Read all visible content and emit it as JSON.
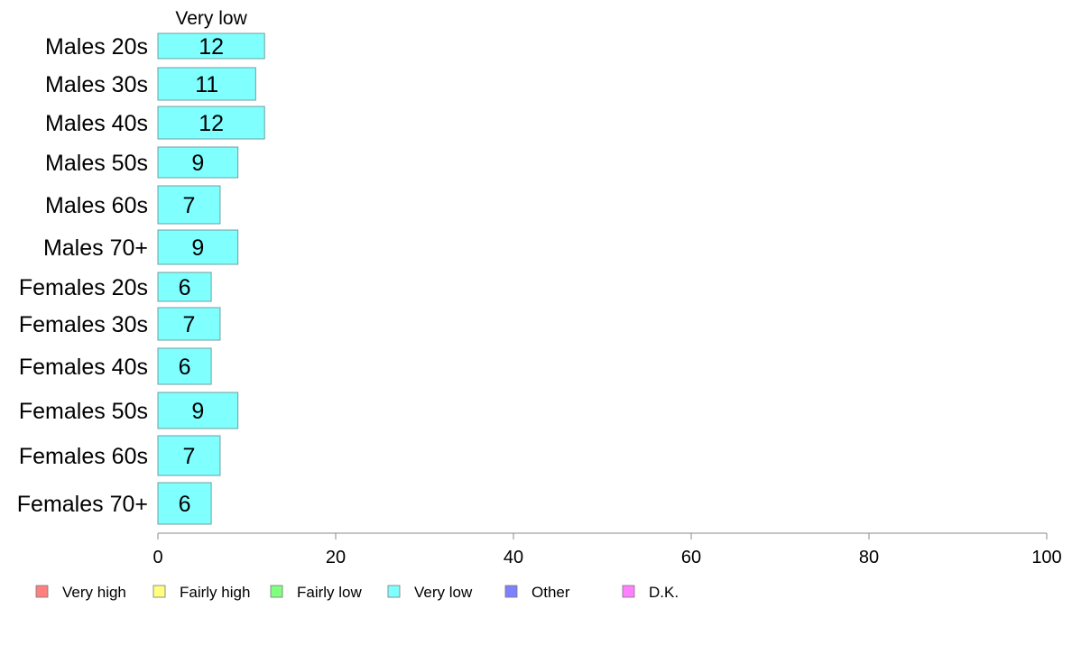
{
  "chart_data": {
    "type": "bar",
    "orientation": "horizontal",
    "title": "",
    "xlabel": "",
    "ylabel": "",
    "xlim": [
      0,
      100
    ],
    "x_ticks": [
      "0",
      "20",
      "40",
      "60",
      "80",
      "100"
    ],
    "grid": false,
    "series_header": "Very low",
    "categories": [
      "Males 20s",
      "Males 30s",
      "Males 40s",
      "Males 50s",
      "Males 60s",
      "Males 70+",
      "Females 20s",
      "Females 30s",
      "Females 40s",
      "Females 50s",
      "Females 60s",
      "Females 70+"
    ],
    "series": [
      {
        "name": "Very low",
        "color": "#80ffff",
        "values": [
          12,
          11,
          12,
          9,
          7,
          9,
          6,
          7,
          6,
          9,
          7,
          6
        ],
        "labels": [
          "12",
          "11",
          "12",
          "9",
          "7",
          "9",
          "6",
          "7",
          "6",
          "9",
          "7",
          "6"
        ]
      }
    ],
    "legend": {
      "position": "bottom",
      "items": [
        {
          "label": "Very high",
          "color": "#ff8080"
        },
        {
          "label": "Fairly high",
          "color": "#ffff80"
        },
        {
          "label": "Fairly low",
          "color": "#80ff80"
        },
        {
          "label": "Very low",
          "color": "#80ffff"
        },
        {
          "label": "Other",
          "color": "#8080ff"
        },
        {
          "label": "D.K.",
          "color": "#ff80ff"
        }
      ]
    }
  }
}
